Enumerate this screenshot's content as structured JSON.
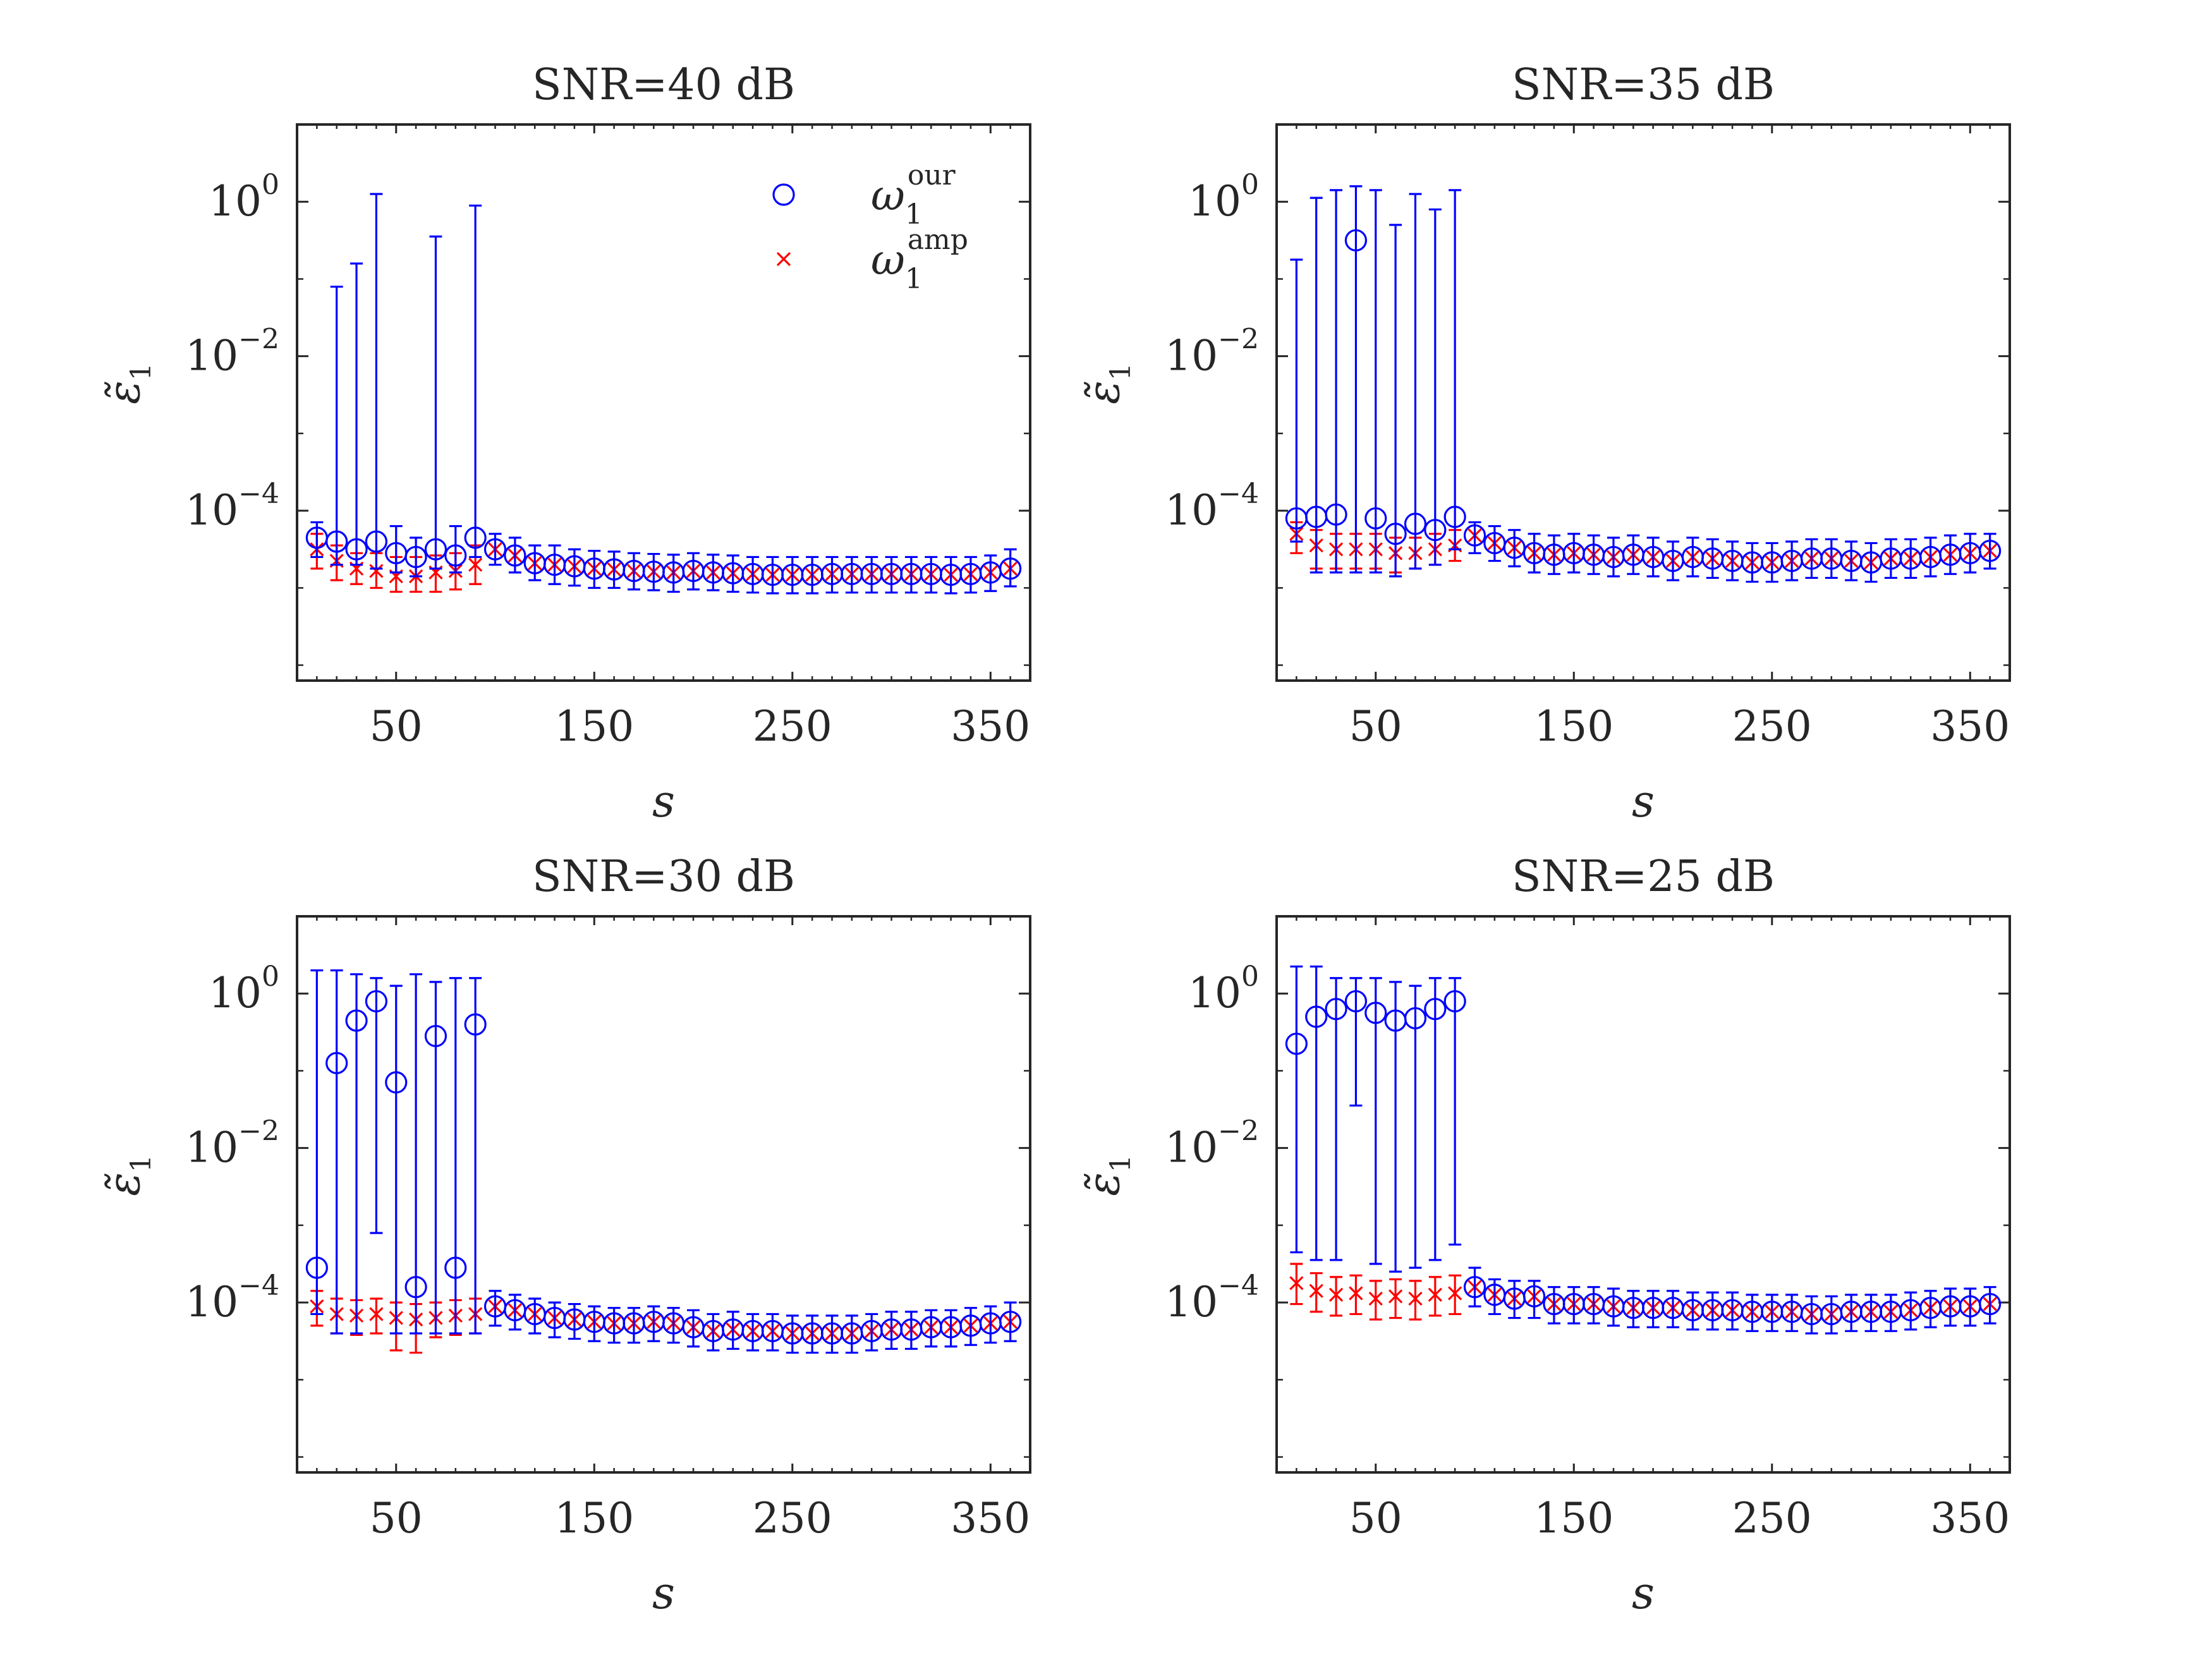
{
  "figure": {
    "legend": {
      "our": {
        "sym": "ω",
        "sub": "1",
        "sup": "our",
        "color": "#0000ff",
        "marker": "circle"
      },
      "amp": {
        "sym": "ω",
        "sub": "1",
        "sup": "amp",
        "color": "#ff0000",
        "marker": "x"
      }
    },
    "axis_color": "#262626"
  },
  "chart_data": [
    {
      "type": "scatter",
      "title": "SNR=40 dB",
      "xlabel": "s",
      "ylabel": {
        "sym": "ε̃",
        "sub": "1"
      },
      "yscale": "log",
      "xlim": [
        0,
        370
      ],
      "ylim_exp": [
        -6.2,
        1
      ],
      "x_ticks": [
        50,
        150,
        250,
        350
      ],
      "y_tick_labels": [
        {
          "base": "10",
          "exp": "0"
        },
        {
          "base": "10",
          "exp": "−2"
        },
        {
          "base": "10",
          "exp": "−4"
        }
      ],
      "y_tick_exps": [
        0,
        -2,
        -4
      ],
      "x": [
        10,
        20,
        30,
        40,
        50,
        60,
        70,
        80,
        90,
        100,
        110,
        120,
        130,
        140,
        150,
        160,
        170,
        180,
        190,
        200,
        210,
        220,
        230,
        240,
        250,
        260,
        270,
        280,
        290,
        300,
        310,
        320,
        330,
        340,
        350,
        360
      ],
      "series": [
        {
          "name": "our",
          "center_exp": [
            -4.35,
            -4.4,
            -4.5,
            -4.4,
            -4.55,
            -4.6,
            -4.5,
            -4.58,
            -4.35,
            -4.5,
            -4.58,
            -4.68,
            -4.7,
            -4.72,
            -4.75,
            -4.76,
            -4.78,
            -4.79,
            -4.8,
            -4.78,
            -4.8,
            -4.81,
            -4.82,
            -4.83,
            -4.83,
            -4.83,
            -4.82,
            -4.82,
            -4.82,
            -4.82,
            -4.82,
            -4.82,
            -4.83,
            -4.82,
            -4.8,
            -4.75
          ],
          "upper_exp": [
            -4.15,
            -1.1,
            -0.8,
            0.1,
            -4.2,
            -4.35,
            -0.45,
            -4.2,
            -0.05,
            -4.3,
            -4.35,
            -4.45,
            -4.45,
            -4.5,
            -4.52,
            -4.53,
            -4.55,
            -4.56,
            -4.57,
            -4.55,
            -4.57,
            -4.58,
            -4.6,
            -4.6,
            -4.6,
            -4.6,
            -4.6,
            -4.6,
            -4.6,
            -4.6,
            -4.6,
            -4.6,
            -4.6,
            -4.6,
            -4.58,
            -4.5
          ],
          "lower_exp": [
            -4.6,
            -4.7,
            -4.7,
            -4.75,
            -4.8,
            -4.85,
            -4.75,
            -4.8,
            -4.6,
            -4.7,
            -4.8,
            -4.9,
            -4.95,
            -4.97,
            -5.0,
            -5.0,
            -5.02,
            -5.03,
            -5.05,
            -5.02,
            -5.03,
            -5.05,
            -5.06,
            -5.07,
            -5.07,
            -5.07,
            -5.06,
            -5.06,
            -5.06,
            -5.06,
            -5.06,
            -5.06,
            -5.07,
            -5.06,
            -5.04,
            -4.98
          ]
        },
        {
          "name": "amp",
          "center_exp": [
            -4.5,
            -4.65,
            -4.75,
            -4.78,
            -4.85,
            -4.85,
            -4.8,
            -4.78,
            -4.7,
            -4.5,
            -4.58,
            -4.68,
            -4.7,
            -4.72,
            -4.75,
            -4.76,
            -4.78,
            -4.79,
            -4.8,
            -4.78,
            -4.8,
            -4.81,
            -4.82,
            -4.83,
            -4.83,
            -4.83,
            -4.82,
            -4.82,
            -4.82,
            -4.82,
            -4.82,
            -4.82,
            -4.83,
            -4.82,
            -4.8,
            -4.75
          ],
          "upper_exp": [
            -4.3,
            -4.45,
            -4.55,
            -4.55,
            -4.6,
            -4.6,
            -4.58,
            -4.55,
            -4.45
          ],
          "lower_exp": [
            -4.75,
            -4.9,
            -4.95,
            -5.0,
            -5.05,
            -5.05,
            -5.05,
            -5.02,
            -4.95
          ]
        }
      ]
    },
    {
      "type": "scatter",
      "title": "SNR=35 dB",
      "xlabel": "s",
      "ylabel": {
        "sym": "ε̃",
        "sub": "1"
      },
      "yscale": "log",
      "xlim": [
        0,
        370
      ],
      "ylim_exp": [
        -6.2,
        1
      ],
      "x_ticks": [
        50,
        150,
        250,
        350
      ],
      "y_tick_labels": [
        {
          "base": "10",
          "exp": "0"
        },
        {
          "base": "10",
          "exp": "−2"
        },
        {
          "base": "10",
          "exp": "−4"
        }
      ],
      "y_tick_exps": [
        0,
        -2,
        -4
      ],
      "x": [
        10,
        20,
        30,
        40,
        50,
        60,
        70,
        80,
        90,
        100,
        110,
        120,
        130,
        140,
        150,
        160,
        170,
        180,
        190,
        200,
        210,
        220,
        230,
        240,
        250,
        260,
        270,
        280,
        290,
        300,
        310,
        320,
        330,
        340,
        350,
        360
      ],
      "series": [
        {
          "name": "our",
          "center_exp": [
            -4.1,
            -4.08,
            -4.05,
            -0.5,
            -4.1,
            -4.3,
            -4.17,
            -4.25,
            -4.08,
            -4.32,
            -4.42,
            -4.48,
            -4.55,
            -4.57,
            -4.55,
            -4.57,
            -4.6,
            -4.57,
            -4.6,
            -4.65,
            -4.6,
            -4.62,
            -4.65,
            -4.67,
            -4.67,
            -4.65,
            -4.62,
            -4.62,
            -4.65,
            -4.67,
            -4.62,
            -4.62,
            -4.6,
            -4.57,
            -4.55,
            -4.52
          ],
          "upper_exp": [
            -0.75,
            0.05,
            0.15,
            0.2,
            0.15,
            -0.3,
            0.1,
            -0.1,
            0.15,
            -4.15,
            -4.2,
            -4.25,
            -4.3,
            -4.32,
            -4.3,
            -4.32,
            -4.35,
            -4.32,
            -4.35,
            -4.4,
            -4.35,
            -4.37,
            -4.4,
            -4.42,
            -4.42,
            -4.4,
            -4.37,
            -4.37,
            -4.4,
            -4.42,
            -4.37,
            -4.37,
            -4.35,
            -4.32,
            -4.3,
            -4.3
          ],
          "lower_exp": [
            -4.4,
            -4.8,
            -4.8,
            -4.8,
            -4.8,
            -4.85,
            -4.75,
            -4.7,
            -4.5,
            -4.55,
            -4.65,
            -4.72,
            -4.8,
            -4.82,
            -4.8,
            -4.82,
            -4.85,
            -4.82,
            -4.85,
            -4.9,
            -4.85,
            -4.87,
            -4.9,
            -4.92,
            -4.92,
            -4.9,
            -4.87,
            -4.87,
            -4.9,
            -4.92,
            -4.87,
            -4.87,
            -4.85,
            -4.82,
            -4.8,
            -4.75
          ]
        },
        {
          "name": "amp",
          "center_exp": [
            -4.3,
            -4.45,
            -4.5,
            -4.5,
            -4.5,
            -4.55,
            -4.55,
            -4.5,
            -4.45,
            -4.32,
            -4.42,
            -4.48,
            -4.55,
            -4.57,
            -4.55,
            -4.57,
            -4.6,
            -4.57,
            -4.6,
            -4.65,
            -4.6,
            -4.62,
            -4.65,
            -4.67,
            -4.67,
            -4.65,
            -4.62,
            -4.62,
            -4.65,
            -4.67,
            -4.62,
            -4.62,
            -4.6,
            -4.57,
            -4.55,
            -4.52
          ],
          "upper_exp": [
            -4.15,
            -4.25,
            -4.3,
            -4.3,
            -4.3,
            -4.35,
            -4.35,
            -4.3,
            -4.25
          ],
          "lower_exp": [
            -4.55,
            -4.75,
            -4.75,
            -4.75,
            -4.75,
            -4.8,
            -4.75,
            -4.7,
            -4.65
          ]
        }
      ]
    },
    {
      "type": "scatter",
      "title": "SNR=30 dB",
      "xlabel": "s",
      "ylabel": {
        "sym": "ε̃",
        "sub": "1"
      },
      "yscale": "log",
      "xlim": [
        0,
        370
      ],
      "ylim_exp": [
        -6.2,
        1
      ],
      "x_ticks": [
        50,
        150,
        250,
        350
      ],
      "y_tick_labels": [
        {
          "base": "10",
          "exp": "0"
        },
        {
          "base": "10",
          "exp": "−2"
        },
        {
          "base": "10",
          "exp": "−4"
        }
      ],
      "y_tick_exps": [
        0,
        -2,
        -4
      ],
      "x": [
        10,
        20,
        30,
        40,
        50,
        60,
        70,
        80,
        90,
        100,
        110,
        120,
        130,
        140,
        150,
        160,
        170,
        180,
        190,
        200,
        210,
        220,
        230,
        240,
        250,
        260,
        270,
        280,
        290,
        300,
        310,
        320,
        330,
        340,
        350,
        360
      ],
      "series": [
        {
          "name": "our",
          "center_exp": [
            -3.55,
            -0.9,
            -0.35,
            -0.1,
            -1.15,
            -3.8,
            -0.55,
            -3.55,
            -0.4,
            -4.05,
            -4.1,
            -4.15,
            -4.2,
            -4.22,
            -4.25,
            -4.27,
            -4.27,
            -4.25,
            -4.27,
            -4.32,
            -4.37,
            -4.35,
            -4.37,
            -4.37,
            -4.4,
            -4.4,
            -4.4,
            -4.4,
            -4.37,
            -4.35,
            -4.35,
            -4.32,
            -4.32,
            -4.3,
            -4.27,
            -4.25
          ],
          "upper_exp": [
            0.3,
            0.3,
            0.25,
            0.2,
            0.1,
            0.25,
            0.15,
            0.2,
            0.2,
            -3.85,
            -3.9,
            -3.95,
            -4.0,
            -4.02,
            -4.05,
            -4.07,
            -4.07,
            -4.05,
            -4.07,
            -4.1,
            -4.15,
            -4.12,
            -4.15,
            -4.15,
            -4.17,
            -4.17,
            -4.17,
            -4.17,
            -4.15,
            -4.12,
            -4.12,
            -4.1,
            -4.1,
            -4.07,
            -4.05,
            -4.0
          ],
          "lower_exp": [
            -4.15,
            -4.4,
            -4.4,
            -3.1,
            -4.4,
            -4.4,
            -4.4,
            -4.4,
            -4.4,
            -4.3,
            -4.35,
            -4.4,
            -4.45,
            -4.47,
            -4.5,
            -4.52,
            -4.52,
            -4.5,
            -4.52,
            -4.57,
            -4.62,
            -4.6,
            -4.62,
            -4.62,
            -4.65,
            -4.65,
            -4.65,
            -4.65,
            -4.62,
            -4.6,
            -4.6,
            -4.57,
            -4.57,
            -4.55,
            -4.52,
            -4.5
          ]
        },
        {
          "name": "amp",
          "center_exp": [
            -4.05,
            -4.15,
            -4.17,
            -4.15,
            -4.2,
            -4.22,
            -4.2,
            -4.17,
            -4.15,
            -4.05,
            -4.1,
            -4.15,
            -4.2,
            -4.22,
            -4.25,
            -4.27,
            -4.27,
            -4.25,
            -4.27,
            -4.32,
            -4.37,
            -4.35,
            -4.37,
            -4.37,
            -4.4,
            -4.4,
            -4.4,
            -4.4,
            -4.37,
            -4.35,
            -4.35,
            -4.32,
            -4.32,
            -4.3,
            -4.27,
            -4.25
          ],
          "upper_exp": [
            -3.85,
            -3.95,
            -3.97,
            -3.95,
            -4.0,
            -4.02,
            -4.0,
            -3.97,
            -3.95
          ],
          "lower_exp": [
            -4.3,
            -4.4,
            -4.42,
            -4.4,
            -4.62,
            -4.65,
            -4.45,
            -4.42,
            -4.4
          ]
        }
      ]
    },
    {
      "type": "scatter",
      "title": "SNR=25 dB",
      "xlabel": "s",
      "ylabel": {
        "sym": "ε̃",
        "sub": "1"
      },
      "yscale": "log",
      "xlim": [
        0,
        370
      ],
      "ylim_exp": [
        -6.2,
        1
      ],
      "x_ticks": [
        50,
        150,
        250,
        350
      ],
      "y_tick_labels": [
        {
          "base": "10",
          "exp": "0"
        },
        {
          "base": "10",
          "exp": "−2"
        },
        {
          "base": "10",
          "exp": "−4"
        }
      ],
      "y_tick_exps": [
        0,
        -2,
        -4
      ],
      "x": [
        10,
        20,
        30,
        40,
        50,
        60,
        70,
        80,
        90,
        100,
        110,
        120,
        130,
        140,
        150,
        160,
        170,
        180,
        190,
        200,
        210,
        220,
        230,
        240,
        250,
        260,
        270,
        280,
        290,
        300,
        310,
        320,
        330,
        340,
        350,
        360
      ],
      "series": [
        {
          "name": "our",
          "center_exp": [
            -0.65,
            -0.3,
            -0.2,
            -0.1,
            -0.25,
            -0.35,
            -0.32,
            -0.2,
            -0.1,
            -3.8,
            -3.9,
            -3.95,
            -3.92,
            -4.02,
            -4.02,
            -4.02,
            -4.05,
            -4.07,
            -4.07,
            -4.07,
            -4.1,
            -4.1,
            -4.1,
            -4.12,
            -4.12,
            -4.12,
            -4.15,
            -4.15,
            -4.12,
            -4.12,
            -4.12,
            -4.1,
            -4.07,
            -4.05,
            -4.05,
            -4.02
          ],
          "upper_exp": [
            0.35,
            0.35,
            0.2,
            0.2,
            0.2,
            0.15,
            0.1,
            0.2,
            0.2,
            -3.55,
            -3.7,
            -3.72,
            -3.72,
            -3.8,
            -3.8,
            -3.8,
            -3.82,
            -3.85,
            -3.85,
            -3.85,
            -3.87,
            -3.87,
            -3.87,
            -3.9,
            -3.9,
            -3.9,
            -3.92,
            -3.92,
            -3.9,
            -3.9,
            -3.9,
            -3.87,
            -3.85,
            -3.82,
            -3.82,
            -3.8
          ],
          "lower_exp": [
            -3.35,
            -3.45,
            -3.45,
            -1.45,
            -3.5,
            -3.6,
            -3.55,
            -3.45,
            -3.25,
            -4.05,
            -4.15,
            -4.2,
            -4.2,
            -4.27,
            -4.27,
            -4.27,
            -4.3,
            -4.32,
            -4.32,
            -4.32,
            -4.35,
            -4.35,
            -4.35,
            -4.37,
            -4.37,
            -4.37,
            -4.4,
            -4.4,
            -4.37,
            -4.37,
            -4.37,
            -4.35,
            -4.32,
            -4.3,
            -4.3,
            -4.27
          ]
        },
        {
          "name": "amp",
          "center_exp": [
            -3.75,
            -3.85,
            -3.9,
            -3.88,
            -3.95,
            -3.92,
            -3.95,
            -3.9,
            -3.88,
            -3.8,
            -3.9,
            -3.95,
            -3.92,
            -4.02,
            -4.02,
            -4.02,
            -4.05,
            -4.07,
            -4.07,
            -4.07,
            -4.1,
            -4.1,
            -4.1,
            -4.12,
            -4.12,
            -4.12,
            -4.15,
            -4.15,
            -4.12,
            -4.12,
            -4.12,
            -4.1,
            -4.07,
            -4.05,
            -4.05,
            -4.02
          ],
          "upper_exp": [
            -3.5,
            -3.62,
            -3.67,
            -3.65,
            -3.72,
            -3.7,
            -3.72,
            -3.67,
            -3.65
          ],
          "lower_exp": [
            -4.02,
            -4.12,
            -4.17,
            -4.15,
            -4.22,
            -4.2,
            -4.22,
            -4.17,
            -4.15
          ]
        }
      ]
    }
  ]
}
